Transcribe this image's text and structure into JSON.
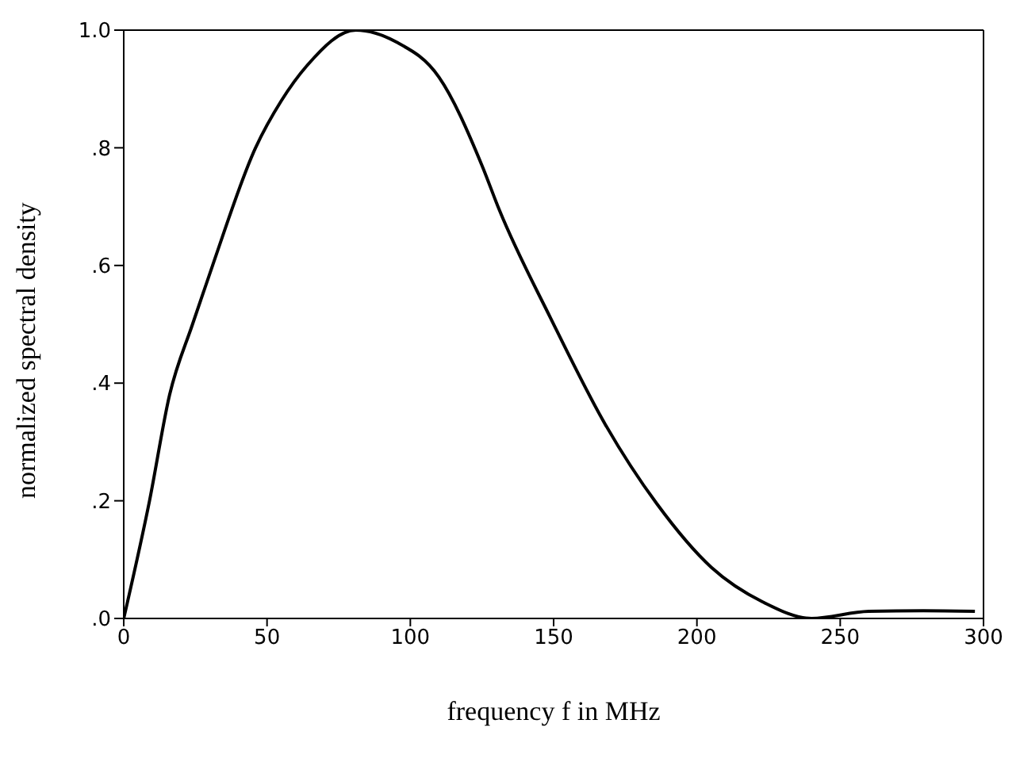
{
  "chart_data": {
    "type": "line",
    "xlabel": "frequency f in MHz",
    "ylabel": "normalized spectral density",
    "x": [
      0,
      9,
      16,
      24,
      31,
      46,
      55,
      64,
      81,
      95,
      110,
      125,
      131,
      149,
      168,
      186,
      205,
      223,
      240,
      260,
      279,
      297
    ],
    "series": [
      {
        "color": "#000000",
        "values": [
          0,
          0.2,
          0.38,
          0.5,
          0.6,
          0.8,
          0.88,
          0.94,
          1.0,
          0.98,
          0.92,
          0.77,
          0.695,
          0.51,
          0.33,
          0.195,
          0.087,
          0.028,
          0,
          0.012,
          0.013,
          0.012
        ]
      }
    ],
    "xlim": [
      0,
      300
    ],
    "xticks": [
      0,
      50,
      100,
      150,
      200,
      250,
      300
    ],
    "ylim": [
      0,
      1
    ],
    "yticks": [
      {
        "value": 0,
        "label": ".0"
      },
      {
        "value": 0.2,
        "label": ".2"
      },
      {
        "value": 0.4,
        "label": ".4"
      },
      {
        "value": 0.6,
        "label": ".6"
      },
      {
        "value": 0.8,
        "label": ".8"
      },
      {
        "value": 1,
        "label": "1.0"
      }
    ],
    "grid": false,
    "legend": false,
    "marker": "none",
    "line_style": "solid"
  }
}
